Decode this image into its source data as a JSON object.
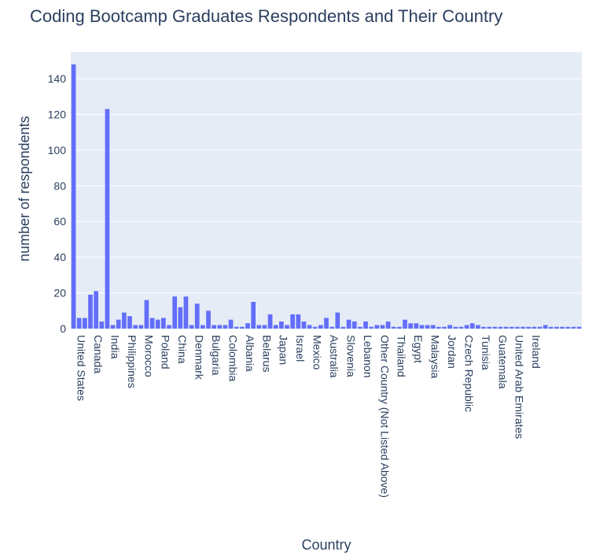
{
  "chart_data": {
    "type": "bar",
    "title": "Coding Bootcamp Graduates Respondents and Their Country",
    "xlabel": "Country",
    "ylabel": "number of respondents",
    "ylim": [
      0,
      155
    ],
    "yticks": [
      0,
      20,
      40,
      60,
      80,
      100,
      120,
      140
    ],
    "grid": true,
    "bar_color": "#636efa",
    "plot_bg": "#e5ecf6",
    "values": [
      148,
      6,
      6,
      19,
      21,
      4,
      123,
      2,
      5,
      9,
      7,
      2,
      2,
      16,
      6,
      5,
      6,
      2,
      18,
      12,
      18,
      2,
      14,
      2,
      10,
      2,
      2,
      2,
      5,
      1,
      1,
      3,
      15,
      2,
      2,
      8,
      2,
      4,
      2,
      8,
      8,
      4,
      2,
      1,
      2,
      6,
      1,
      9,
      1,
      5,
      4,
      1,
      4,
      1,
      2,
      2,
      4,
      1,
      1,
      5,
      3,
      3,
      2,
      2,
      2,
      1,
      1,
      2,
      1,
      1,
      2,
      3,
      2,
      1,
      1,
      1,
      1,
      1,
      1,
      1,
      1,
      1,
      1,
      1,
      2,
      1,
      1,
      1,
      1,
      1,
      1
    ],
    "tick_labels": [
      {
        "index": 0,
        "label": "United States"
      },
      {
        "index": 3,
        "label": "Canada"
      },
      {
        "index": 6,
        "label": "India"
      },
      {
        "index": 9,
        "label": "Philippines"
      },
      {
        "index": 12,
        "label": "Morocco"
      },
      {
        "index": 15,
        "label": "Poland"
      },
      {
        "index": 18,
        "label": "China"
      },
      {
        "index": 21,
        "label": "Denmark"
      },
      {
        "index": 24,
        "label": "Bulgaria"
      },
      {
        "index": 27,
        "label": "Colombia"
      },
      {
        "index": 30,
        "label": "Albania"
      },
      {
        "index": 33,
        "label": "Belarus"
      },
      {
        "index": 36,
        "label": "Japan"
      },
      {
        "index": 39,
        "label": "Israel"
      },
      {
        "index": 42,
        "label": "Mexico"
      },
      {
        "index": 45,
        "label": "Australia"
      },
      {
        "index": 48,
        "label": "Slovenia"
      },
      {
        "index": 51,
        "label": "Lebanon"
      },
      {
        "index": 54,
        "label": "Other Country (Not Listed Above)"
      },
      {
        "index": 57,
        "label": "Thailand"
      },
      {
        "index": 60,
        "label": "Egypt"
      },
      {
        "index": 63,
        "label": "Malaysia"
      },
      {
        "index": 66,
        "label": "Jordan"
      },
      {
        "index": 69,
        "label": "Czech Republic"
      },
      {
        "index": 72,
        "label": "Tunisia"
      },
      {
        "index": 75,
        "label": "Guatemala"
      },
      {
        "index": 78,
        "label": "United Arab Emirates"
      },
      {
        "index": 81,
        "label": "Ireland"
      }
    ]
  }
}
